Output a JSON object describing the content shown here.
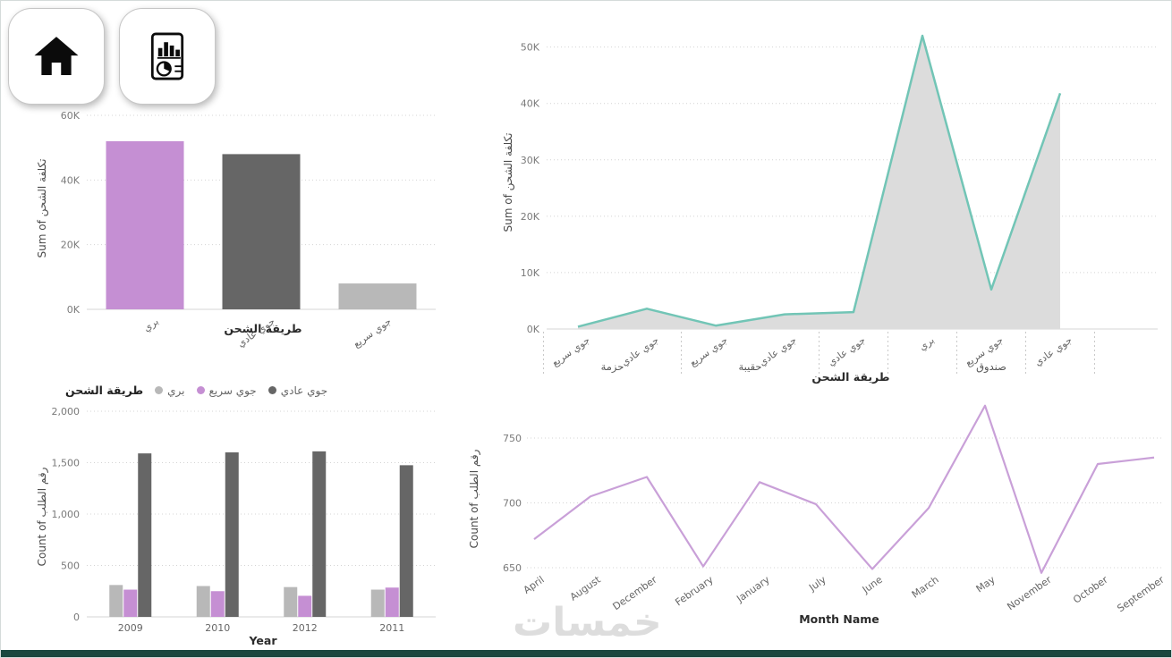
{
  "watermark": "خمسات",
  "colors": {
    "footer_bar": "#1b473f",
    "purple": "#c58fd3",
    "dark_gray": "#666666",
    "light_gray": "#b8b8b8",
    "teal": "#72c5b6"
  },
  "icons": {
    "home": "home-icon",
    "report": "report-chart-icon"
  },
  "chart_data": [
    {
      "type": "bar",
      "ylabel": "Sum of تكلفة الشحن",
      "xlabel": "طريقة الشحن",
      "categories": [
        "بري",
        "جوي عادي",
        "جوي سريع"
      ],
      "values": [
        52000,
        48000,
        8000
      ],
      "bar_colors": [
        "#c58fd3",
        "#666666",
        "#b8b8b8"
      ],
      "ylim": [
        0,
        60000
      ],
      "yticks": [
        0,
        20000,
        40000,
        60000
      ],
      "ytick_labels": [
        "0K",
        "20K",
        "40K",
        "60K"
      ],
      "grid": "dotted-horizontal",
      "legend": "none"
    },
    {
      "type": "area",
      "ylabel": "Sum of تكلفة الشحن",
      "xlabel": "طريقة الشحن",
      "categories": [
        "جوي سريع",
        "جوي عادي",
        "جوي سريع",
        "جوي عادي",
        "جوي عادي",
        "بري",
        "جوي سريع",
        "جوي عادي"
      ],
      "groups": [
        {
          "label": "حزمة",
          "from": 0,
          "to": 1
        },
        {
          "label": "حقيبة",
          "from": 2,
          "to": 3
        },
        {
          "label": "صندوق",
          "from": 6,
          "to": 6
        }
      ],
      "values": [
        400,
        3600,
        600,
        2600,
        3000,
        52000,
        7000,
        41800
      ],
      "line_color": "#72c5b6",
      "fill_color": "#dcdcdc",
      "ylim": [
        0,
        52000
      ],
      "yticks": [
        0,
        10000,
        20000,
        30000,
        40000,
        50000
      ],
      "ytick_labels": [
        "0K",
        "10K",
        "20K",
        "30K",
        "40K",
        "50K"
      ],
      "grid": "dotted-horizontal",
      "legend": "none"
    },
    {
      "type": "clustered-bar",
      "legend_title": "طريقة الشحن",
      "legend_position": "top",
      "ylabel": "Count of رقم الطلب",
      "xlabel": "Year",
      "categories": [
        "2009",
        "2010",
        "2012",
        "2011"
      ],
      "series": [
        {
          "name": "بري",
          "color": "#b8b8b8",
          "values": [
            310,
            300,
            290,
            265
          ]
        },
        {
          "name": "جوي سريع",
          "color": "#c58fd3",
          "values": [
            265,
            250,
            205,
            285
          ]
        },
        {
          "name": "جوي عادي",
          "color": "#666666",
          "values": [
            1590,
            1600,
            1610,
            1475
          ]
        }
      ],
      "ylim": [
        0,
        2000
      ],
      "yticks": [
        0,
        500,
        1000,
        1500,
        2000
      ],
      "ytick_labels": [
        "0",
        "500",
        "1,000",
        "1,500",
        "2,000"
      ],
      "grid": "dotted-horizontal"
    },
    {
      "type": "line",
      "ylabel": "Count of رقم الطلب",
      "xlabel": "Month Name",
      "categories": [
        "April",
        "August",
        "December",
        "February",
        "January",
        "July",
        "June",
        "March",
        "May",
        "November",
        "October",
        "September"
      ],
      "values": [
        672,
        705,
        720,
        651,
        716,
        699,
        649,
        696,
        775,
        646,
        730,
        735
      ],
      "line_color": "#c9a0d8",
      "ylim": [
        640,
        790
      ],
      "yticks": [
        650,
        700,
        750
      ],
      "ytick_labels": [
        "650",
        "700",
        "750"
      ],
      "grid": "dotted-horizontal",
      "legend": "none"
    }
  ]
}
